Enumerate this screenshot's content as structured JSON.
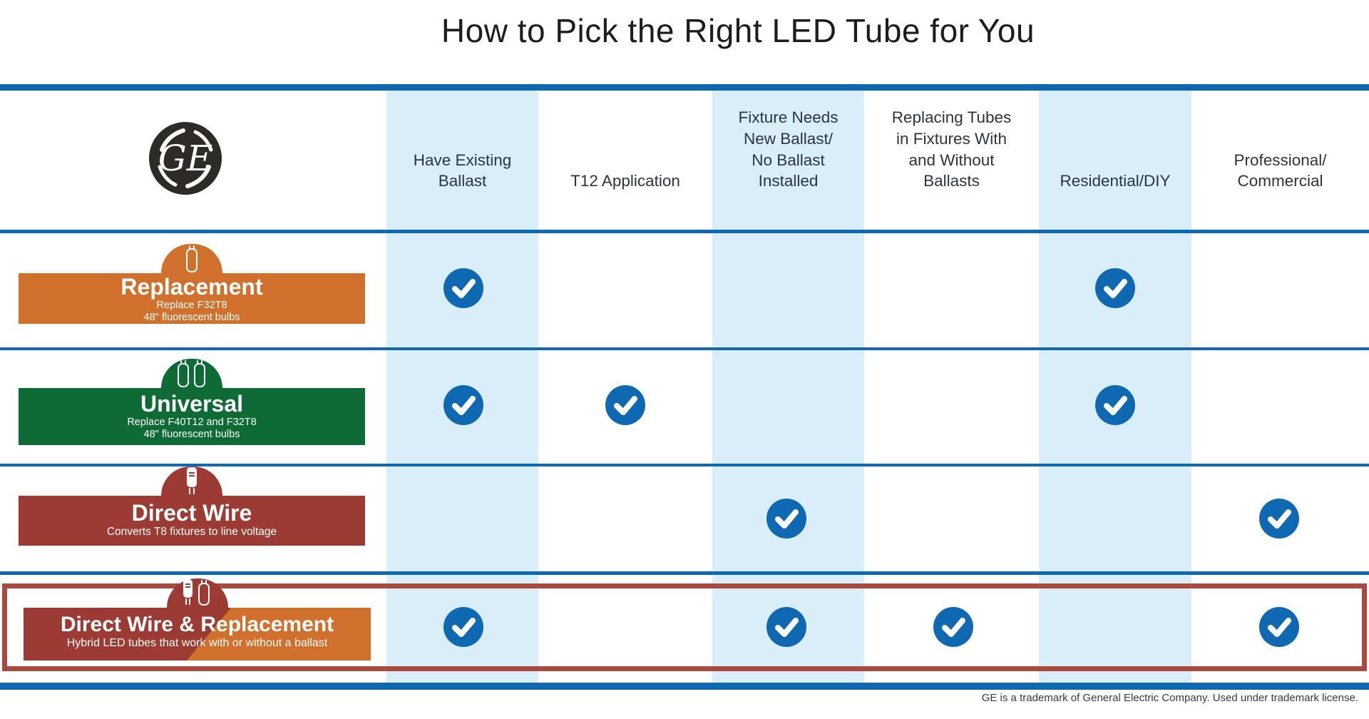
{
  "page": {
    "title": "How to Pick the Right LED Tube for You",
    "footer": "GE is a trademark of General Electric Company. Used under trademark license."
  },
  "brand": {
    "logo_text": "GE"
  },
  "colors": {
    "ge_blue": "#0f68b2",
    "light_blue_column": "#d9eef9",
    "orange": "#d0702c",
    "green": "#0f6b36",
    "maroon": "#9c3b33",
    "highlight_border": "#a84a40",
    "check_circle": "#0f68b2"
  },
  "columns": [
    {
      "label": "Have Existing\nBallast",
      "shaded": true
    },
    {
      "label": "T12 Application",
      "shaded": false
    },
    {
      "label": "Fixture Needs\nNew Ballast/\nNo Ballast\nInstalled",
      "shaded": true
    },
    {
      "label": "Replacing Tubes\nin Fixtures With\nand Without\nBallasts",
      "shaded": false
    },
    {
      "label": "Residential/DIY",
      "shaded": true
    },
    {
      "label": "Professional/\nCommercial",
      "shaded": false
    }
  ],
  "rows": [
    {
      "title": "Replacement",
      "subtitle": "Replace F32T8\n48\" fluorescent bulbs",
      "icon": "single-led-tube",
      "color": "#d0702c",
      "highlighted": false,
      "checks": [
        1,
        0,
        0,
        0,
        1,
        0
      ]
    },
    {
      "title": "Universal",
      "subtitle": "Replace F40T12 and F32T8\n48\" fluorescent bulbs",
      "icon": "double-led-tube",
      "color": "#0f6b36",
      "highlighted": false,
      "checks": [
        1,
        1,
        0,
        0,
        1,
        0
      ]
    },
    {
      "title": "Direct Wire",
      "subtitle": "Converts T8 fixtures to line voltage",
      "icon": "direct-wire-tube",
      "color": "#9c3b33",
      "highlighted": false,
      "checks": [
        0,
        0,
        1,
        0,
        0,
        1
      ]
    },
    {
      "title": "Direct Wire & Replacement",
      "subtitle": "Hybrid LED tubes that work with or without a ballast",
      "icon": "hybrid-tubes",
      "color": "maroon-orange-split",
      "highlighted": true,
      "checks": [
        1,
        0,
        1,
        1,
        0,
        1
      ]
    }
  ],
  "chart_data": {
    "type": "table",
    "title": "How to Pick the Right LED Tube for You",
    "columns": [
      "Have Existing Ballast",
      "T12 Application",
      "Fixture Needs New Ballast/No Ballast Installed",
      "Replacing Tubes in Fixtures With and Without Ballasts",
      "Residential/DIY",
      "Professional/Commercial"
    ],
    "rows": [
      {
        "product": "Replacement",
        "description": "Replace F32T8 48\" fluorescent bulbs",
        "values": [
          true,
          false,
          false,
          false,
          true,
          false
        ],
        "highlighted": false
      },
      {
        "product": "Universal",
        "description": "Replace F40T12 and F32T8 48\" fluorescent bulbs",
        "values": [
          true,
          true,
          false,
          false,
          true,
          false
        ],
        "highlighted": false
      },
      {
        "product": "Direct Wire",
        "description": "Converts T8 fixtures to line voltage",
        "values": [
          false,
          false,
          true,
          false,
          false,
          true
        ],
        "highlighted": false
      },
      {
        "product": "Direct Wire & Replacement",
        "description": "Hybrid LED tubes that work with or without a ballast",
        "values": [
          true,
          false,
          true,
          true,
          false,
          true
        ],
        "highlighted": true
      }
    ],
    "cell_marker": "checkmark",
    "footer": "GE is a trademark of General Electric Company. Used under trademark license."
  }
}
